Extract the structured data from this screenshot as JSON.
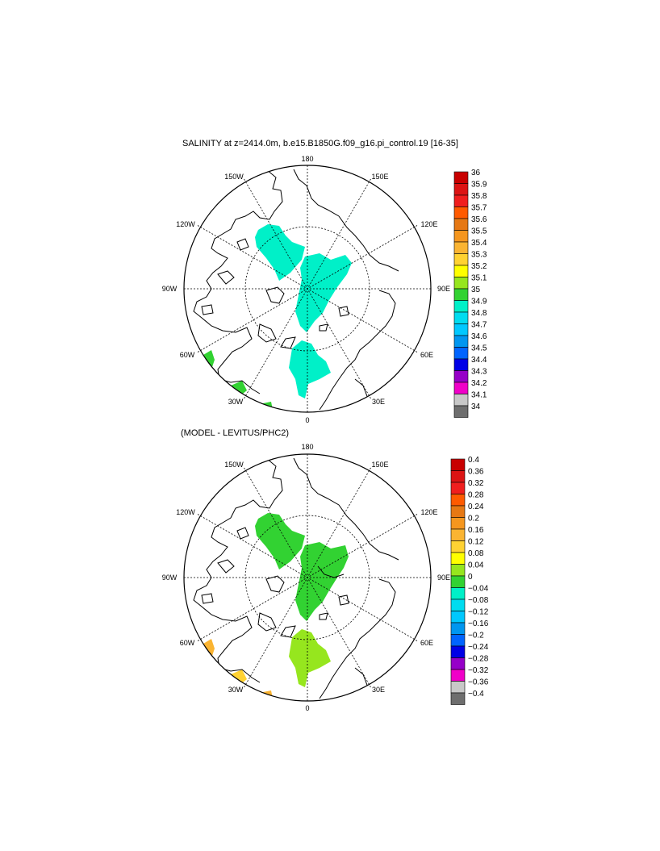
{
  "panels": [
    {
      "title": "SALINITY at z=2414.0m, b.e15.B1850G.f09_g16.pi_control.19 [16-35]",
      "lon_labels": {
        "180": "180",
        "150E": "150E",
        "120E": "120E",
        "90E": "90E",
        "60E": "60E",
        "30E": "30E",
        "0": "0",
        "30W": "30W",
        "60W": "60W",
        "90W": "90W",
        "120W": "120W",
        "150W": "150W"
      },
      "colorbar": {
        "labels": [
          "36",
          "35.9",
          "35.8",
          "35.7",
          "35.6",
          "35.5",
          "35.4",
          "35.3",
          "35.2",
          "35.1",
          "35",
          "34.9",
          "34.8",
          "34.7",
          "34.6",
          "34.5",
          "34.4",
          "34.3",
          "34.2",
          "34.1",
          "34"
        ],
        "colors": [
          "#c80000",
          "#dc1414",
          "#f01e1e",
          "#ff5a00",
          "#e67814",
          "#f5961e",
          "#fab432",
          "#ffd232",
          "#ffff00",
          "#96e61e",
          "#32d232",
          "#00f0c8",
          "#00dcf0",
          "#00c8ff",
          "#0096f0",
          "#0064ff",
          "#0000e6",
          "#9600c8",
          "#f000c8",
          "#c8c8c8",
          "#6e6e6e"
        ]
      }
    },
    {
      "title": "(MODEL - LEVITUS/PHC2)",
      "lon_labels": {
        "180": "180",
        "150E": "150E",
        "120E": "120E",
        "90E": "90E",
        "60E": "60E",
        "30E": "30E",
        "0": "0",
        "30W": "30W",
        "60W": "60W",
        "90W": "90W",
        "120W": "120W",
        "150W": "150W"
      },
      "colorbar": {
        "labels": [
          "0.4",
          "0.36",
          "0.32",
          "0.28",
          "0.24",
          "0.2",
          "0.16",
          "0.12",
          "0.08",
          "0.04",
          "0",
          "−0.04",
          "−0.08",
          "−0.12",
          "−0.16",
          "−0.2",
          "−0.24",
          "−0.28",
          "−0.32",
          "−0.36",
          "−0.4"
        ],
        "colors": [
          "#c80000",
          "#dc1414",
          "#f01e1e",
          "#ff5a00",
          "#e67814",
          "#f5961e",
          "#fab432",
          "#ffd232",
          "#ffff00",
          "#96e61e",
          "#32d232",
          "#00f0c8",
          "#00dcf0",
          "#00c8ff",
          "#0096f0",
          "#0064ff",
          "#0000e6",
          "#9600c8",
          "#f000c8",
          "#c8c8c8",
          "#6e6e6e"
        ]
      }
    }
  ],
  "fill_colors": {
    "salinity_main": "#00f0c8",
    "salinity_edge": "#32d232",
    "diff_main": "#32d232",
    "diff_edge": "#fab432",
    "diff_edge2": "#ffd232"
  }
}
